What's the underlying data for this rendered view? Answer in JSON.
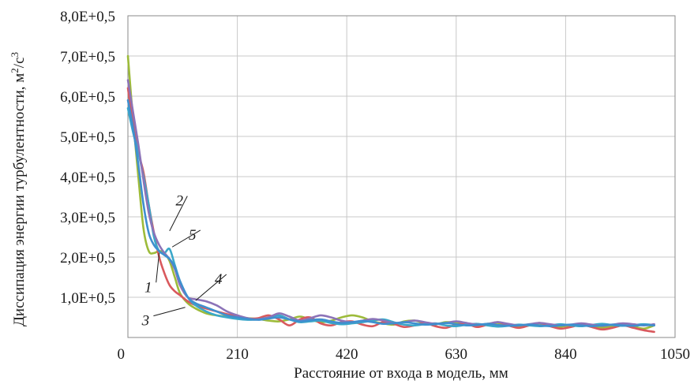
{
  "chart_data": {
    "type": "line",
    "xlabel": "Расстояние от входа в модель, мм",
    "ylabel": "Диссипация энергии турбулентности, м",
    "ylabel_sup1": "2",
    "ylabel_mid": "/с",
    "ylabel_sup2": "3",
    "xlim": [
      0,
      1050
    ],
    "ylim": [
      0,
      8
    ],
    "grid": true,
    "x_ticks": [
      0,
      210,
      420,
      630,
      840,
      1050
    ],
    "x_tick_labels": [
      "0",
      "210",
      "420",
      "630",
      "840",
      "1050"
    ],
    "y_ticks": [
      1,
      2,
      3,
      4,
      5,
      6,
      7,
      8
    ],
    "y_tick_labels": [
      "1,0E+0,5",
      "2,0E+0,5",
      "3,0E+0,5",
      "4,0E+0,5",
      "5,0E+0,5",
      "6,0E+0,5",
      "7,0E+0,5",
      "8,0E+0,5"
    ],
    "series": [
      {
        "name": "1",
        "color": "#9dbb3a",
        "x": [
          0,
          10,
          20,
          30,
          40,
          50,
          60,
          70,
          80,
          90,
          100,
          115,
          130,
          150,
          170,
          190,
          210,
          230,
          250,
          270,
          290,
          310,
          330,
          350,
          370,
          390,
          410,
          430,
          450,
          470,
          490,
          510,
          530,
          550,
          570,
          590,
          610,
          630,
          650,
          670,
          690,
          710,
          730,
          750,
          770,
          790,
          810,
          830,
          850,
          870,
          890,
          910,
          930,
          950,
          970,
          990,
          1010
        ],
        "y": [
          7.0,
          5.4,
          4.0,
          2.7,
          2.15,
          2.1,
          2.15,
          2.1,
          1.9,
          1.5,
          1.1,
          0.85,
          0.72,
          0.6,
          0.55,
          0.52,
          0.5,
          0.48,
          0.46,
          0.42,
          0.4,
          0.45,
          0.52,
          0.45,
          0.38,
          0.42,
          0.5,
          0.55,
          0.5,
          0.4,
          0.35,
          0.32,
          0.4,
          0.42,
          0.35,
          0.33,
          0.38,
          0.37,
          0.32,
          0.3,
          0.34,
          0.36,
          0.3,
          0.28,
          0.32,
          0.35,
          0.3,
          0.27,
          0.3,
          0.33,
          0.28,
          0.25,
          0.28,
          0.3,
          0.27,
          0.22,
          0.3
        ]
      },
      {
        "name": "2",
        "color": "#d9595d",
        "x": [
          0,
          10,
          20,
          30,
          40,
          50,
          60,
          70,
          80,
          90,
          100,
          115,
          130,
          150,
          170,
          190,
          210,
          230,
          250,
          270,
          290,
          310,
          330,
          350,
          370,
          390,
          410,
          430,
          450,
          470,
          490,
          510,
          530,
          550,
          570,
          590,
          610,
          630,
          650,
          670,
          690,
          710,
          730,
          750,
          770,
          790,
          810,
          830,
          850,
          870,
          890,
          910,
          930,
          950,
          970,
          990,
          1010
        ],
        "y": [
          6.2,
          5.3,
          4.6,
          4.1,
          3.3,
          2.6,
          2.0,
          1.6,
          1.3,
          1.15,
          1.05,
          0.9,
          0.8,
          0.72,
          0.65,
          0.58,
          0.52,
          0.47,
          0.48,
          0.55,
          0.45,
          0.3,
          0.45,
          0.5,
          0.35,
          0.3,
          0.38,
          0.4,
          0.32,
          0.28,
          0.38,
          0.34,
          0.26,
          0.3,
          0.36,
          0.28,
          0.24,
          0.32,
          0.34,
          0.26,
          0.32,
          0.38,
          0.3,
          0.24,
          0.3,
          0.36,
          0.28,
          0.22,
          0.26,
          0.32,
          0.26,
          0.2,
          0.24,
          0.3,
          0.24,
          0.18,
          0.14
        ]
      },
      {
        "name": "3",
        "color": "#3aa7c9",
        "x": [
          0,
          10,
          20,
          30,
          40,
          50,
          60,
          70,
          80,
          90,
          100,
          115,
          130,
          150,
          170,
          190,
          210,
          230,
          250,
          270,
          290,
          310,
          330,
          350,
          370,
          390,
          410,
          430,
          450,
          470,
          490,
          510,
          530,
          550,
          570,
          590,
          610,
          630,
          650,
          670,
          690,
          710,
          730,
          750,
          770,
          790,
          810,
          830,
          850,
          870,
          890,
          910,
          930,
          950,
          970,
          990,
          1010
        ],
        "y": [
          5.7,
          5.1,
          4.6,
          4.0,
          3.3,
          2.5,
          2.15,
          2.1,
          2.2,
          1.8,
          1.4,
          1.0,
          0.8,
          0.65,
          0.55,
          0.5,
          0.46,
          0.44,
          0.45,
          0.5,
          0.55,
          0.45,
          0.38,
          0.4,
          0.42,
          0.36,
          0.33,
          0.35,
          0.38,
          0.42,
          0.45,
          0.38,
          0.32,
          0.3,
          0.33,
          0.35,
          0.3,
          0.28,
          0.32,
          0.34,
          0.3,
          0.27,
          0.29,
          0.32,
          0.3,
          0.28,
          0.3,
          0.33,
          0.3,
          0.28,
          0.31,
          0.34,
          0.31,
          0.29,
          0.31,
          0.33,
          0.31
        ]
      },
      {
        "name": "4",
        "color": "#8c73b8",
        "x": [
          0,
          10,
          20,
          30,
          40,
          50,
          60,
          70,
          80,
          90,
          100,
          115,
          130,
          150,
          170,
          190,
          210,
          230,
          250,
          270,
          290,
          310,
          330,
          350,
          370,
          390,
          410,
          430,
          450,
          470,
          490,
          510,
          530,
          550,
          570,
          590,
          610,
          630,
          650,
          670,
          690,
          710,
          730,
          750,
          770,
          790,
          810,
          830,
          850,
          870,
          890,
          910,
          930,
          950,
          970,
          990,
          1010
        ],
        "y": [
          6.4,
          5.6,
          4.8,
          3.9,
          3.1,
          2.6,
          2.3,
          2.1,
          1.95,
          1.7,
          1.3,
          1.0,
          0.95,
          0.9,
          0.8,
          0.65,
          0.55,
          0.48,
          0.45,
          0.5,
          0.6,
          0.52,
          0.42,
          0.48,
          0.55,
          0.5,
          0.42,
          0.38,
          0.42,
          0.46,
          0.42,
          0.36,
          0.38,
          0.42,
          0.38,
          0.34,
          0.36,
          0.4,
          0.36,
          0.32,
          0.34,
          0.38,
          0.34,
          0.3,
          0.33,
          0.36,
          0.33,
          0.3,
          0.32,
          0.35,
          0.32,
          0.29,
          0.32,
          0.35,
          0.33,
          0.3,
          0.33
        ]
      },
      {
        "name": "5",
        "color": "#3f8fcf",
        "x": [
          0,
          10,
          20,
          30,
          40,
          50,
          60,
          70,
          80,
          90,
          100,
          115,
          130,
          150,
          170,
          190,
          210,
          230,
          250,
          270,
          290,
          310,
          330,
          350,
          370,
          390,
          410,
          430,
          450,
          470,
          490,
          510,
          530,
          550,
          570,
          590,
          610,
          630,
          650,
          670,
          690,
          710,
          730,
          750,
          770,
          790,
          810,
          830,
          850,
          870,
          890,
          910,
          930,
          950,
          970,
          990,
          1010
        ],
        "y": [
          5.9,
          5.2,
          4.3,
          3.3,
          2.6,
          2.3,
          2.15,
          2.05,
          1.95,
          1.75,
          1.4,
          1.0,
          0.85,
          0.75,
          0.65,
          0.55,
          0.5,
          0.46,
          0.44,
          0.47,
          0.5,
          0.45,
          0.4,
          0.43,
          0.45,
          0.4,
          0.36,
          0.38,
          0.41,
          0.38,
          0.34,
          0.35,
          0.38,
          0.35,
          0.32,
          0.33,
          0.36,
          0.33,
          0.3,
          0.31,
          0.34,
          0.31,
          0.29,
          0.3,
          0.32,
          0.3,
          0.28,
          0.3,
          0.32,
          0.3,
          0.28,
          0.3,
          0.32,
          0.3,
          0.29,
          0.31,
          0.3
        ]
      }
    ],
    "curve_labels": [
      {
        "text": "1",
        "point": [
          60,
          2.1
        ],
        "label_at": [
          45,
          1.25
        ]
      },
      {
        "text": "2",
        "point": [
          80,
          2.65
        ],
        "label_at": [
          105,
          3.4
        ]
      },
      {
        "text": "3",
        "point": [
          110,
          0.75
        ],
        "label_at": [
          40,
          0.42
        ]
      },
      {
        "text": "4",
        "point": [
          130,
          0.92
        ],
        "label_at": [
          180,
          1.45
        ]
      },
      {
        "text": "5",
        "point": [
          85,
          2.25
        ],
        "label_at": [
          130,
          2.55
        ]
      }
    ]
  }
}
